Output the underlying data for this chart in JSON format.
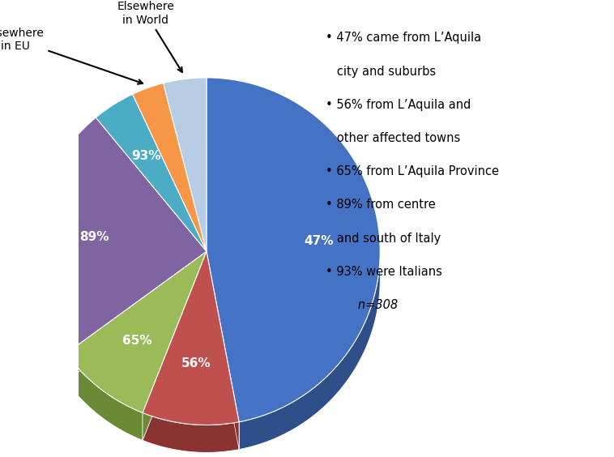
{
  "slices": [
    {
      "label": "47%",
      "value": 47,
      "color": "#4472C4",
      "dark_color": "#2E4F8A"
    },
    {
      "label": "56%",
      "value": 9,
      "color": "#C0504D",
      "dark_color": "#8B3330"
    },
    {
      "label": "65%",
      "value": 9,
      "color": "#9BBB59",
      "dark_color": "#6B8A35"
    },
    {
      "label": "89%",
      "value": 24,
      "color": "#8064A2",
      "dark_color": "#5A4472"
    },
    {
      "label": "93%",
      "value": 4,
      "color": "#4BACC6",
      "dark_color": "#2D7A94"
    },
    {
      "label": "",
      "value": 3,
      "color": "#F79646",
      "dark_color": "#C06A1A"
    },
    {
      "label": "",
      "value": 4,
      "color": "#B8CCE4",
      "dark_color": "#8AABCC"
    }
  ],
  "background_color": "#FFFFFF",
  "start_angle": 90,
  "bullet_lines": [
    "•  47% came from L'Aquila",
    "    city and suburbs",
    "•  56% from L'Aquila and",
    "    other affected towns",
    "•  65% from L'Aquila Province",
    "•  89% from centre",
    "    and south of Italy",
    "•  93% were Italians",
    "           n=308"
  ]
}
